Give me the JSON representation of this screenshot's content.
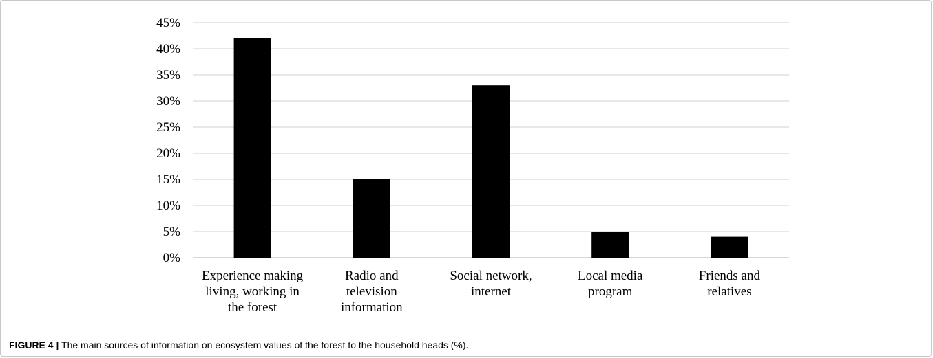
{
  "caption": {
    "label": "FIGURE 4 |",
    "text": " The main sources of information on ecosystem values of the forest to the household heads (%)."
  },
  "chart_data": {
    "type": "bar",
    "categories": [
      [
        "Experience making",
        "living, working in",
        "the forest"
      ],
      [
        "Radio and",
        "television",
        "information"
      ],
      [
        "Social network,",
        "internet"
      ],
      [
        "Local media",
        "program"
      ],
      [
        "Friends and",
        "relatives"
      ]
    ],
    "values": [
      42,
      15,
      33,
      5,
      4
    ],
    "yticks": [
      "0%",
      "5%",
      "10%",
      "15%",
      "20%",
      "25%",
      "30%",
      "35%",
      "40%",
      "45%"
    ],
    "ylim": [
      0,
      45
    ],
    "grid": true,
    "bar_color": "#000000",
    "grid_color": "#d9d9d9"
  }
}
